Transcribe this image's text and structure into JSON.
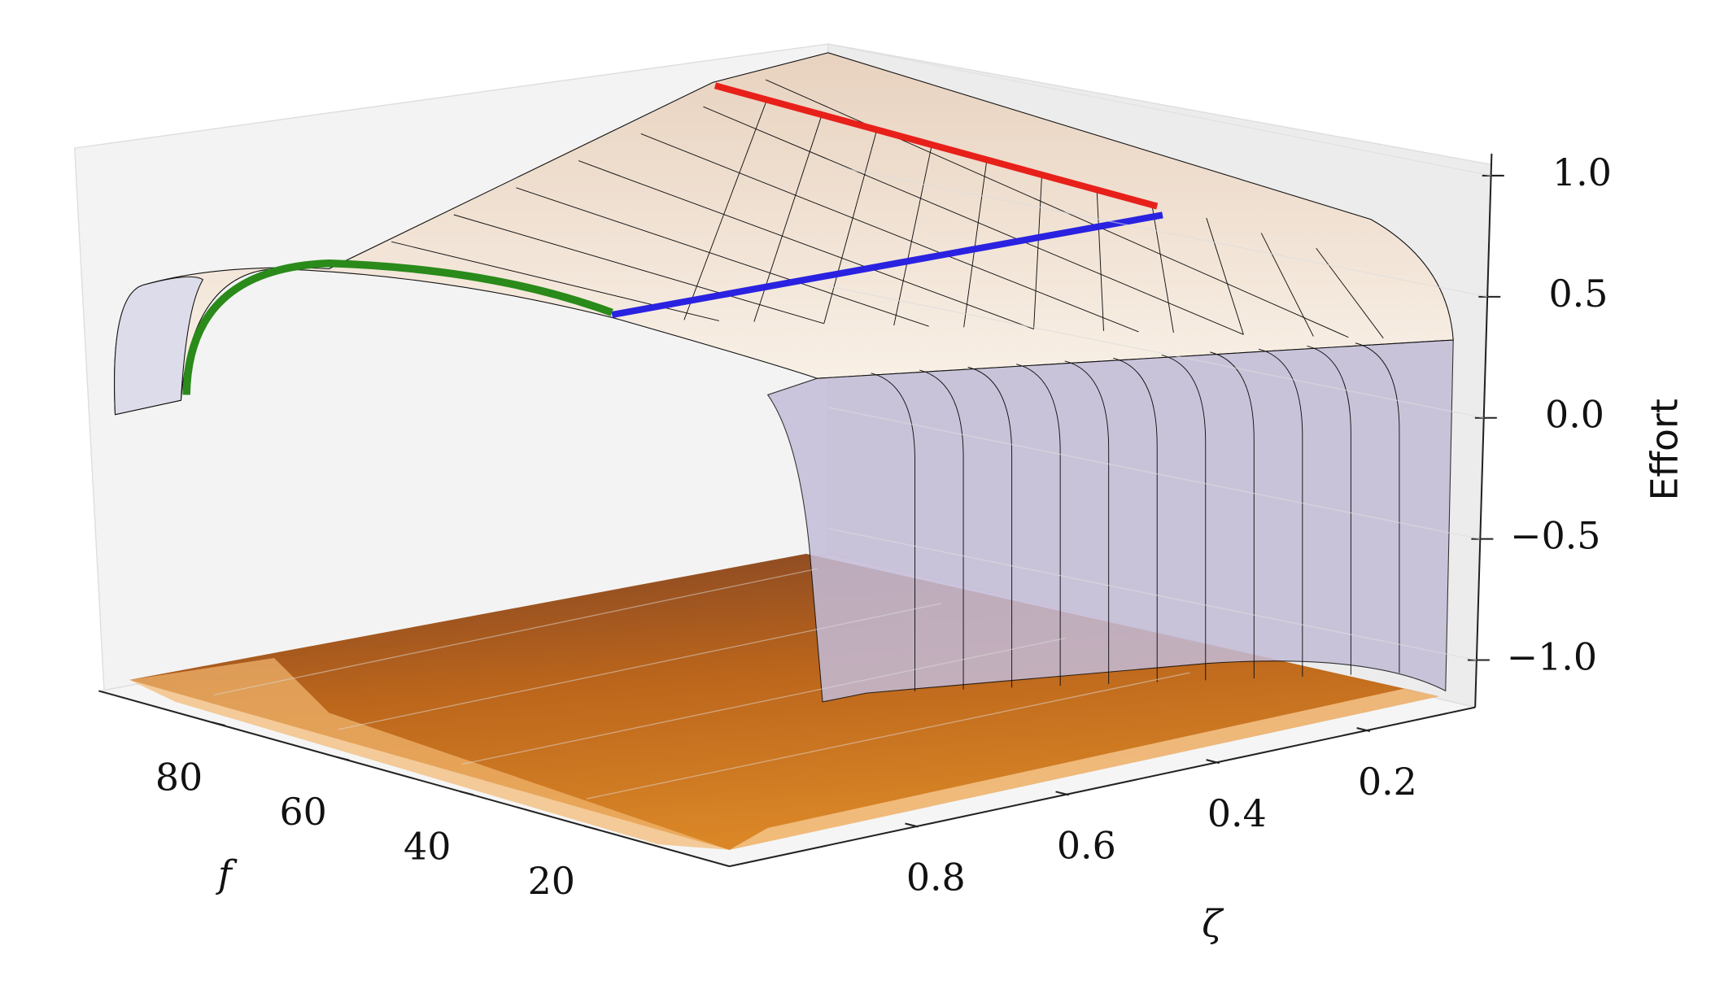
{
  "chart_data": {
    "type": "surface3d",
    "xlabel": "f",
    "ylabel": "ζ",
    "zlabel": "Effort",
    "xlim": [
      0,
      100
    ],
    "xticks": [
      20,
      40,
      60,
      80
    ],
    "ylim": [
      0.05,
      1.0
    ],
    "yticks": [
      0.2,
      0.4,
      0.6,
      0.8
    ],
    "zlim": [
      -1.1,
      1.1
    ],
    "zticks": [
      {
        "value": -1.0,
        "label": "−1.0"
      },
      {
        "value": -0.5,
        "label": "−0.5"
      },
      {
        "value": 0.0,
        "label": "0.0"
      },
      {
        "value": 0.5,
        "label": "0.5"
      },
      {
        "value": 1.0,
        "label": "1.0"
      }
    ],
    "grid": true
  }
}
